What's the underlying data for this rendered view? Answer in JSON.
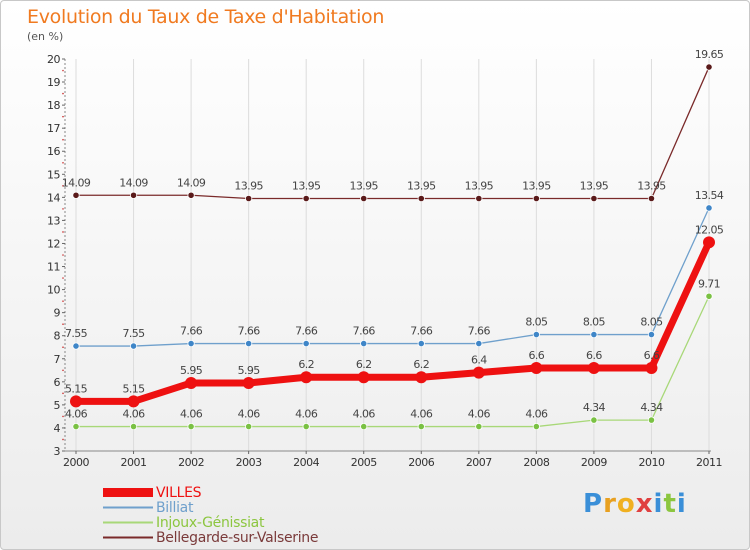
{
  "header": {
    "title": "Evolution du Taux de Taxe d'Habitation",
    "subtitle": "(en %)"
  },
  "brand": {
    "letters": [
      "P",
      "r",
      "o",
      "x",
      "i",
      "t",
      "i"
    ],
    "colors": [
      "#3a8fd8",
      "#e8a020",
      "#f0b020",
      "#e04040",
      "#3a8fd8",
      "#8cc63f",
      "#3a8fd8"
    ]
  },
  "chart_data": {
    "type": "line",
    "title": "Evolution du Taux de Taxe d'Habitation",
    "ylabel": "(en %)",
    "xlabel": "",
    "ylim": [
      3,
      20
    ],
    "yticks": [
      3,
      4,
      5,
      6,
      7,
      8,
      9,
      10,
      11,
      12,
      13,
      14,
      15,
      16,
      17,
      18,
      19,
      20
    ],
    "grid": "vertical",
    "legend_position": "bottom-left",
    "x": [
      "2000",
      "2001",
      "2002",
      "2003",
      "2004",
      "2005",
      "2006",
      "2007",
      "2008",
      "2009",
      "2010",
      "2011"
    ],
    "series": [
      {
        "name": "Bellegarde-sur-Valserine",
        "color": "#7a2a2a",
        "marker": "#5a1a1a",
        "values": [
          14.09,
          14.09,
          14.09,
          13.95,
          13.95,
          13.95,
          13.95,
          13.95,
          13.95,
          13.95,
          13.95,
          19.65
        ],
        "labels": [
          "14.09",
          "14.09",
          "14.09",
          "13.95",
          "13.95",
          "13.95",
          "13.95",
          "13.95",
          "13.95",
          "13.95",
          "13.95",
          "19.65"
        ]
      },
      {
        "name": "Billiat",
        "color": "#6fa0cc",
        "marker": "#3f86c8",
        "values": [
          7.55,
          7.55,
          7.66,
          7.66,
          7.66,
          7.66,
          7.66,
          7.66,
          8.05,
          8.05,
          8.05,
          13.54
        ],
        "labels": [
          "7.55",
          "7.55",
          "7.66",
          "7.66",
          "7.66",
          "7.66",
          "7.66",
          "7.66",
          "8.05",
          "8.05",
          "8.05",
          "13.54"
        ]
      },
      {
        "name": "Injoux-Génissiat",
        "color": "#a8d878",
        "marker": "#7ac143",
        "values": [
          4.06,
          4.06,
          4.06,
          4.06,
          4.06,
          4.06,
          4.06,
          4.06,
          4.06,
          4.34,
          4.34,
          9.71
        ],
        "labels": [
          "4.06",
          "4.06",
          "4.06",
          "4.06",
          "4.06",
          "4.06",
          "4.06",
          "4.06",
          "4.06",
          "4.34",
          "4.34",
          "9.71"
        ]
      },
      {
        "name": "VILLES",
        "color": "#ee1111",
        "marker": "#ee1111",
        "values": [
          5.15,
          5.15,
          5.95,
          5.95,
          6.2,
          6.2,
          6.2,
          6.4,
          6.6,
          6.6,
          6.6,
          12.05
        ],
        "labels": [
          "5.15",
          "5.15",
          "5.95",
          "5.95",
          "6.2",
          "6.2",
          "6.2",
          "6.4",
          "6.6",
          "6.6",
          "6.6",
          "12.05"
        ]
      }
    ]
  },
  "legend": [
    {
      "label": "VILLES",
      "color": "#ee1111",
      "width": 9
    },
    {
      "label": "Billiat",
      "color": "#6fa0cc",
      "width": 2
    },
    {
      "label": "Injoux-Génissiat",
      "color": "#a8d878",
      "width": 2
    },
    {
      "label": "Bellegarde-sur-Valserine",
      "color": "#7a2a2a",
      "width": 2
    }
  ]
}
